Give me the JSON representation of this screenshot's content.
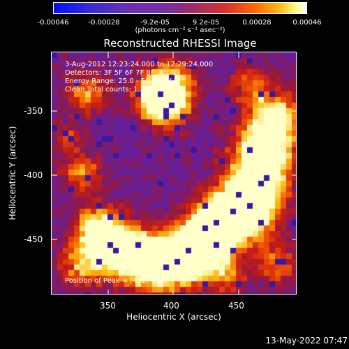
{
  "colorbar": {
    "ticks": [
      "-0.00046",
      "-0.00028",
      "-9.2e-05",
      "9.2e-05",
      "0.00028",
      "0.00046"
    ],
    "unit": "(photons cm⁻² s⁻¹ asec⁻²)",
    "range": [
      -0.00046,
      0.00046
    ]
  },
  "title": "Reconstructed RHESSI Image",
  "info": {
    "time": "3-Aug-2012 12:23:24.000 to 12:29:24.000",
    "detectors": "Detectors: 3F 5F 6F 7F 8F, Att 0",
    "energy": "Energy Range: 25.0 - 50.0 keV",
    "clean": "Clean     Total counts: 1.36E+04",
    "peak": "Position of Peak = [432,-432]"
  },
  "axes": {
    "xlabel": "Heliocentric X (arcsec)",
    "ylabel": "Heliocentric Y (arcsec)",
    "xticks": [
      "350",
      "400",
      "450"
    ],
    "yticks": [
      "-350",
      "-400",
      "-450"
    ],
    "xlim": [
      308,
      496
    ],
    "ylim": [
      -496,
      -307
    ]
  },
  "timestamp": "13-May-2022 07:47"
}
